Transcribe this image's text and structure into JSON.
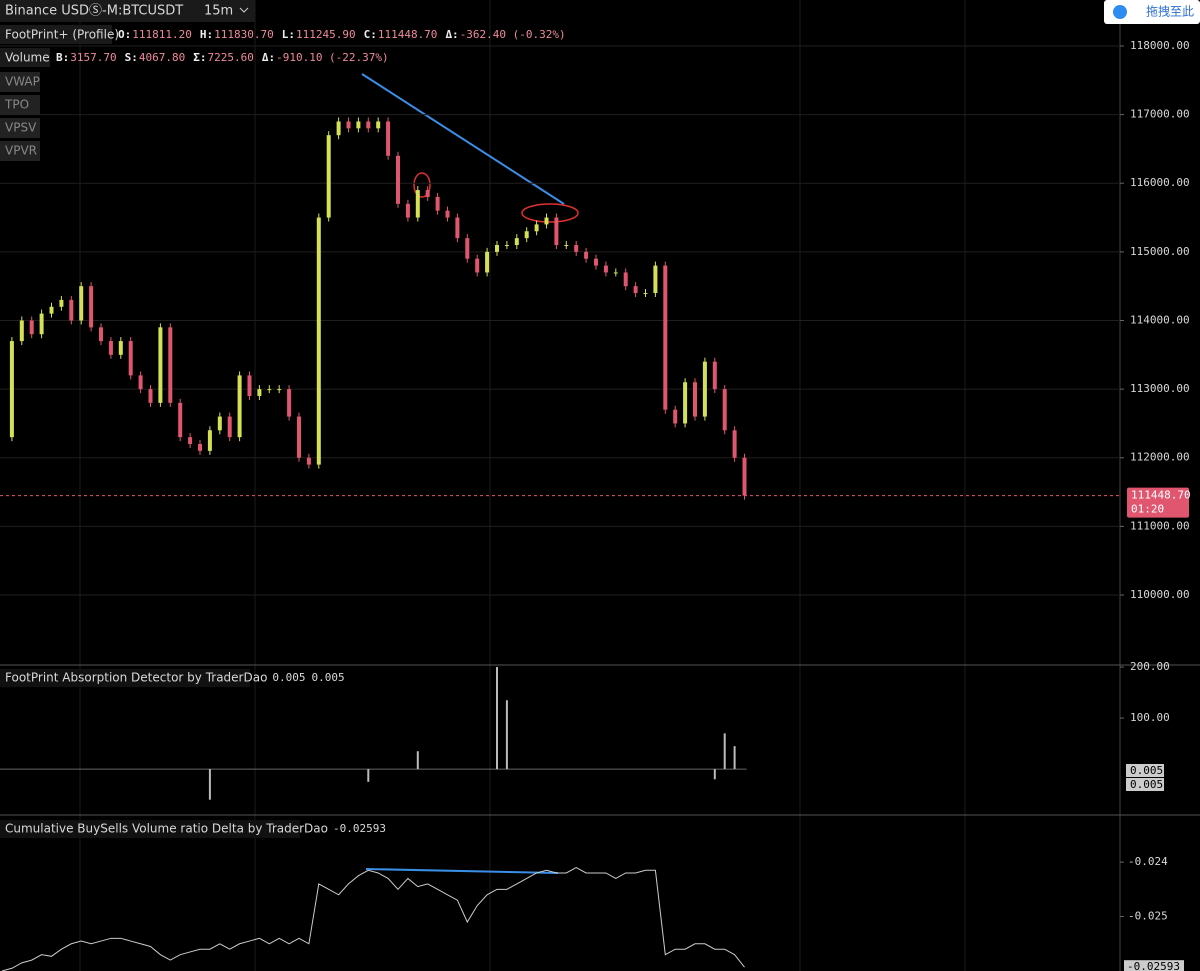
{
  "header": {
    "symbol": "Binance USDⓈ-M:BTCUSDT",
    "interval": "15m",
    "drag_button": "拖拽至此",
    "indicator": "FootPrint+ (Profile)",
    "ohlc": [
      {
        "label": "O:",
        "value": "111811.20"
      },
      {
        "label": "H:",
        "value": "111830.70"
      },
      {
        "label": "L:",
        "value": "111245.90"
      },
      {
        "label": "C:",
        "value": "111448.70"
      },
      {
        "label": "Δ:",
        "value": "-362.40 (-0.32%)"
      }
    ],
    "volume_title": "Volume",
    "volume": [
      {
        "label": "B:",
        "value": "3157.70"
      },
      {
        "label": "S:",
        "value": "4067.80"
      },
      {
        "label": "Σ:",
        "value": "7225.60"
      },
      {
        "label": "Δ:",
        "value": "-910.10 (-22.37%)"
      }
    ],
    "buttons": [
      "VWAP",
      "TPO",
      "VPSV",
      "VPVR"
    ]
  },
  "chart_data": [
    {
      "type": "candlestick",
      "up_color": "#d4e157",
      "down_color": "#e0566f",
      "values": [
        112300,
        113700,
        114000,
        113800,
        114100,
        114200,
        114300,
        114000,
        114500,
        113900,
        113700,
        113500,
        113700,
        113200,
        113000,
        112800,
        113900,
        112800,
        112300,
        112200,
        112100,
        112400,
        112600,
        112300,
        113200,
        112900,
        113000,
        113000,
        113000,
        112600,
        112000,
        111900,
        115500,
        116700,
        116900,
        116800,
        116900,
        116800,
        116900,
        116400,
        115700,
        115500,
        115900,
        115800,
        115600,
        115500,
        115200,
        114900,
        114700,
        115000,
        115100,
        115100,
        115200,
        115300,
        115400,
        115500,
        115100,
        115100,
        115000,
        114900,
        114800,
        114700,
        114700,
        114500,
        114400,
        114400,
        114800,
        112700,
        112500,
        113100,
        112600,
        113400,
        113000,
        112400,
        112000,
        111448.7
      ],
      "ylim": [
        108980,
        118670
      ],
      "yticks": [
        {
          "value": 110000,
          "label": "110000.00"
        },
        {
          "value": 111000,
          "label": "111000.00"
        },
        {
          "value": 112000,
          "label": "112000.00"
        },
        {
          "value": 113000,
          "label": "113000.00"
        },
        {
          "value": 114000,
          "label": "114000.00"
        },
        {
          "value": 115000,
          "label": "115000.00"
        },
        {
          "value": 116000,
          "label": "116000.00"
        },
        {
          "value": 117000,
          "label": "117000.00"
        },
        {
          "value": 118000,
          "label": "118000.00"
        }
      ],
      "grid": true,
      "last_price": {
        "value": 111448.7,
        "label": "111448.70"
      },
      "countdown": "01:20"
    },
    {
      "type": "bar",
      "title": "FootPrint Absorption Detector by TraderDao",
      "color": "#bbbbbb",
      "legend_values": [
        "0.005",
        "0.005"
      ],
      "values": [
        0,
        0,
        0,
        0,
        0,
        0,
        0,
        0,
        0,
        0,
        0,
        0,
        0,
        0,
        0,
        0,
        0,
        0,
        0,
        0,
        0,
        -60,
        0,
        0,
        0,
        0,
        0,
        0,
        0,
        0,
        0,
        0,
        0,
        0,
        0,
        0,
        0,
        -25,
        0,
        0,
        0,
        0,
        35,
        0,
        0,
        0,
        0,
        0,
        0,
        0,
        200,
        135,
        0,
        0,
        0,
        0,
        0,
        0,
        0,
        0,
        0,
        0,
        0,
        0,
        0,
        0,
        0,
        0,
        0,
        0,
        0,
        0,
        -20,
        70,
        45,
        0
      ],
      "ylim": [
        -90,
        204
      ],
      "yticks": [
        {
          "value": 100,
          "label": "100.00"
        },
        {
          "value": 200,
          "label": "200.00"
        }
      ]
    },
    {
      "type": "line",
      "title": "Cumulative BuySells Volume ratio Delta by TraderDao",
      "color": "#cccccc",
      "values": [
        -0.026,
        -0.02595,
        -0.02585,
        -0.0258,
        -0.0257,
        -0.02573,
        -0.0256,
        -0.0255,
        -0.02545,
        -0.0255,
        -0.02545,
        -0.0254,
        -0.0254,
        -0.02545,
        -0.0255,
        -0.02555,
        -0.0257,
        -0.0258,
        -0.0257,
        -0.02565,
        -0.0256,
        -0.0256,
        -0.0255,
        -0.0256,
        -0.0255,
        -0.02545,
        -0.0254,
        -0.0255,
        -0.0254,
        -0.0255,
        -0.0254,
        -0.0255,
        -0.0244,
        -0.0245,
        -0.0246,
        -0.0244,
        -0.02425,
        -0.02415,
        -0.0242,
        -0.0243,
        -0.0245,
        -0.0243,
        -0.02445,
        -0.0244,
        -0.0245,
        -0.0246,
        -0.0247,
        -0.0251,
        -0.0248,
        -0.0246,
        -0.0245,
        -0.0245,
        -0.0244,
        -0.0243,
        -0.0242,
        -0.02415,
        -0.0242,
        -0.0242,
        -0.0241,
        -0.0242,
        -0.0242,
        -0.0242,
        -0.0243,
        -0.0242,
        -0.0242,
        -0.02415,
        -0.02415,
        -0.0257,
        -0.0256,
        -0.0256,
        -0.0255,
        -0.0255,
        -0.0256,
        -0.0256,
        -0.0257,
        -0.02593
      ],
      "ylim": [
        -0.026,
        -0.023135
      ],
      "yticks": [
        -0.025,
        -0.024
      ]
    }
  ]
}
